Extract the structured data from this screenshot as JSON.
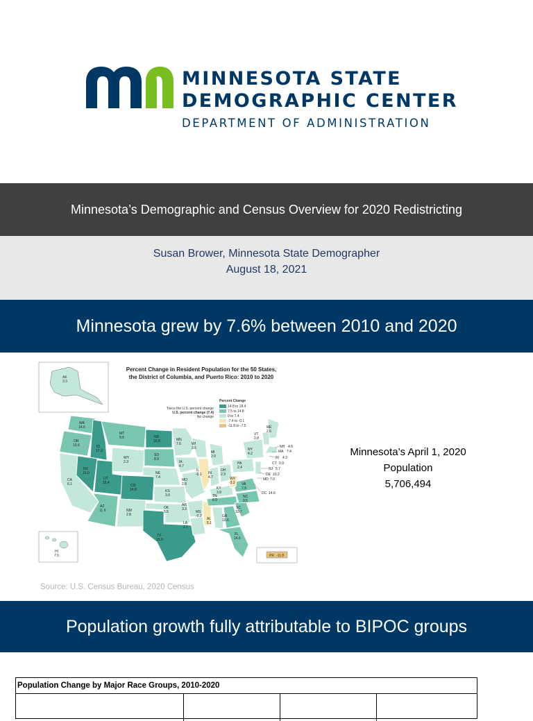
{
  "logo": {
    "line1": "MINNESOTA STATE",
    "line2": "DEMOGRAPHIC CENTER",
    "line3": "DEPARTMENT OF ADMINISTRATION",
    "colors": {
      "navy": "#003865",
      "green": "#78BE20"
    }
  },
  "presentation": {
    "title": "Minnesota’s Demographic and Census Overview for 2020 Redistricting",
    "presenter": "Susan Brower, Minnesota State Demographer",
    "date": "August 18, 2021"
  },
  "section1": {
    "heading": "Minnesota grew by 7.6% between 2010 and 2020"
  },
  "map": {
    "title_line1": "Percent Change in Resident Population for the 50 States,",
    "title_line2": "the District of Columbia, and Puerto Rico: 2010 to 2020",
    "legend": {
      "title": "Percent Change",
      "note_twice": "Twice the U.S. percent change",
      "note_us": "U.S. percent change (7.4)",
      "note_none": "No change",
      "items": [
        {
          "label": "14.8 to 18.4",
          "color": "#3b9b8a"
        },
        {
          "label": "7.5 to 14.8",
          "color": "#79c6b0"
        },
        {
          "label": "0 to 7.4",
          "color": "#c4e7dc"
        },
        {
          "label": "-7.4 to -0.1",
          "color": "#f7e7b4"
        },
        {
          "label": "-11.8 to -7.5",
          "color": "#e9c07c"
        }
      ]
    },
    "states": [
      {
        "abbr": "WA",
        "value": "14.6"
      },
      {
        "abbr": "OR",
        "value": "10.6"
      },
      {
        "abbr": "CA",
        "value": "6.1"
      },
      {
        "abbr": "NV",
        "value": "15.0"
      },
      {
        "abbr": "ID",
        "value": "17.3"
      },
      {
        "abbr": "MT",
        "value": "9.6"
      },
      {
        "abbr": "WY",
        "value": "2.3"
      },
      {
        "abbr": "UT",
        "value": "18.4"
      },
      {
        "abbr": "AZ",
        "value": "11.9"
      },
      {
        "abbr": "CO",
        "value": "14.8"
      },
      {
        "abbr": "NM",
        "value": "2.8"
      },
      {
        "abbr": "ND",
        "value": "15.8"
      },
      {
        "abbr": "SD",
        "value": "8.9"
      },
      {
        "abbr": "NE",
        "value": "7.4"
      },
      {
        "abbr": "KS",
        "value": "3.0"
      },
      {
        "abbr": "OK",
        "value": "5.5"
      },
      {
        "abbr": "TX",
        "value": "15.9"
      },
      {
        "abbr": "MN",
        "value": "7.6"
      },
      {
        "abbr": "IA",
        "value": "4.7"
      },
      {
        "abbr": "MO",
        "value": "2.8"
      },
      {
        "abbr": "AR",
        "value": "3.3"
      },
      {
        "abbr": "LA",
        "value": "2.7"
      },
      {
        "abbr": "WI",
        "value": "3.6"
      },
      {
        "abbr": "IL",
        "value": "-0.1"
      },
      {
        "abbr": "MS",
        "value": "-0.2"
      },
      {
        "abbr": "MI",
        "value": "2.0"
      },
      {
        "abbr": "IN",
        "value": "4.7"
      },
      {
        "abbr": "OH",
        "value": "2.3"
      },
      {
        "abbr": "KY",
        "value": "3.8"
      },
      {
        "abbr": "TN",
        "value": "8.9"
      },
      {
        "abbr": "AL",
        "value": "5.1"
      },
      {
        "abbr": "GA",
        "value": "10.6"
      },
      {
        "abbr": "FL",
        "value": "14.6"
      },
      {
        "abbr": "SC",
        "value": "10.7"
      },
      {
        "abbr": "NC",
        "value": "9.5"
      },
      {
        "abbr": "VA",
        "value": "7.9"
      },
      {
        "abbr": "WV",
        "value": "-3.2"
      },
      {
        "abbr": "PA",
        "value": "2.4"
      },
      {
        "abbr": "NY",
        "value": "4.2"
      },
      {
        "abbr": "VT",
        "value": "2.8"
      },
      {
        "abbr": "ME",
        "value": "2.6"
      },
      {
        "abbr": "NH",
        "value": "4.6"
      },
      {
        "abbr": "MA",
        "value": "7.4"
      },
      {
        "abbr": "RI",
        "value": "4.3"
      },
      {
        "abbr": "CT",
        "value": "0.9"
      },
      {
        "abbr": "NJ",
        "value": "5.7"
      },
      {
        "abbr": "DE",
        "value": "10.2"
      },
      {
        "abbr": "MD",
        "value": "7.0"
      },
      {
        "abbr": "DC",
        "value": "14.6"
      },
      {
        "abbr": "AK",
        "value": "3.3"
      },
      {
        "abbr": "HI",
        "value": "7.0"
      },
      {
        "abbr": "PR",
        "value": "-11.8"
      }
    ]
  },
  "population": {
    "line1": "Minnesota’s April 1, 2020",
    "line2": "Population",
    "value": "5,706,494"
  },
  "source": "Source: U.S. Census Bureau, 2020 Census",
  "section2": {
    "heading": "Population growth fully attributable to BIPOC groups"
  },
  "table": {
    "title": "Population Change by Major Race Groups, 2010-2020"
  }
}
